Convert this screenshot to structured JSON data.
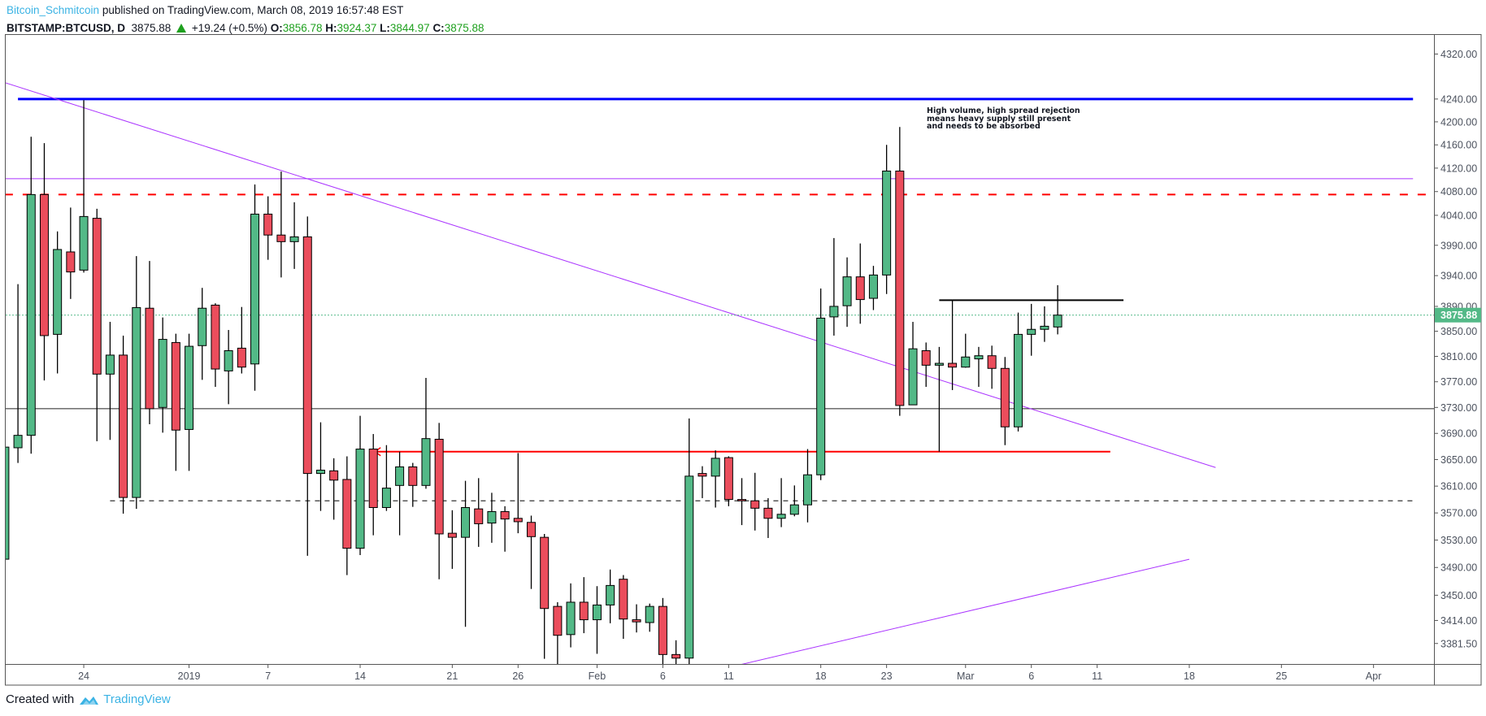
{
  "header": {
    "author": "Bitcoin_Schmitcoin",
    "published": "published on TradingView.com, March 08, 2019 16:57:48 EST",
    "symbol": "BITSTAMP:BTCUSD, D",
    "last": "3875.88",
    "change": "+19.24 (+0.5%)",
    "o_label": "O:",
    "o": "3856.78",
    "h_label": "H:",
    "h": "3924.37",
    "l_label": "L:",
    "l": "3844.97",
    "c_label": "C:",
    "c": "3875.88",
    "change_icon": "triangle-up-icon"
  },
  "annotation": {
    "lines": [
      "High volume, high spread rejection",
      "means heavy supply still present",
      "and needs to be absorbed"
    ]
  },
  "footer": {
    "created_with": "Created with",
    "brand": "TradingView",
    "logo_icon": "tradingview-cloud-icon"
  },
  "colors": {
    "up": "#53b987",
    "down": "#eb4d5c",
    "blue_line": "#0000ff",
    "purple": "#aa33ff",
    "red_line": "#ff0000",
    "price_label": "#53b987"
  },
  "chart_data": {
    "type": "candlestick",
    "symbol": "BITSTAMP:BTCUSD",
    "interval": "D",
    "y_scale": "log",
    "ylim": [
      3353,
      4330
    ],
    "grid": false,
    "start_date": "2018-12-18",
    "columns": [
      "open",
      "high",
      "low",
      "close"
    ],
    "candles": [
      [
        3502,
        3675,
        3500,
        3669
      ],
      [
        3668,
        3926,
        3645,
        3687
      ],
      [
        3687,
        4174,
        3659,
        4075
      ],
      [
        4075,
        4163,
        3772,
        3843
      ],
      [
        3845,
        4013,
        3783,
        3983
      ],
      [
        3979,
        4053,
        3902,
        3946
      ],
      [
        3949,
        4238,
        3945,
        4038
      ],
      [
        4035,
        4051,
        3678,
        3782
      ],
      [
        3782,
        3865,
        3680,
        3812
      ],
      [
        3812,
        3843,
        3569,
        3593
      ],
      [
        3593,
        3972,
        3576,
        3888
      ],
      [
        3887,
        3964,
        3704,
        3728
      ],
      [
        3730,
        3872,
        3691,
        3837
      ],
      [
        3832,
        3846,
        3633,
        3695
      ],
      [
        3696,
        3846,
        3633,
        3826
      ],
      [
        3827,
        3920,
        3773,
        3887
      ],
      [
        3892,
        3895,
        3762,
        3790
      ],
      [
        3787,
        3852,
        3735,
        3819
      ],
      [
        3823,
        3889,
        3783,
        3793
      ],
      [
        3798,
        4092,
        3756,
        4042
      ],
      [
        4042,
        4072,
        3966,
        4007
      ],
      [
        4007,
        4114,
        3937,
        3996
      ],
      [
        3996,
        4062,
        3951,
        4004
      ],
      [
        4004,
        4038,
        3507,
        3629
      ],
      [
        3629,
        3707,
        3573,
        3634
      ],
      [
        3633,
        3652,
        3560,
        3619
      ],
      [
        3620,
        3655,
        3479,
        3518
      ],
      [
        3518,
        3717,
        3508,
        3666
      ],
      [
        3666,
        3689,
        3537,
        3578
      ],
      [
        3578,
        3672,
        3573,
        3607
      ],
      [
        3611,
        3662,
        3537,
        3639
      ],
      [
        3639,
        3645,
        3579,
        3611
      ],
      [
        3611,
        3776,
        3606,
        3682
      ],
      [
        3681,
        3706,
        3473,
        3539
      ],
      [
        3540,
        3574,
        3488,
        3534
      ],
      [
        3534,
        3618,
        3405,
        3578
      ],
      [
        3576,
        3622,
        3520,
        3554
      ],
      [
        3555,
        3600,
        3526,
        3572
      ],
      [
        3572,
        3580,
        3513,
        3561
      ],
      [
        3562,
        3660,
        3540,
        3557
      ],
      [
        3556,
        3566,
        3459,
        3535
      ],
      [
        3534,
        3539,
        3360,
        3431
      ],
      [
        3434,
        3440,
        3350,
        3393
      ],
      [
        3394,
        3467,
        3376,
        3440
      ],
      [
        3440,
        3476,
        3396,
        3415
      ],
      [
        3415,
        3463,
        3367,
        3436
      ],
      [
        3436,
        3487,
        3410,
        3464
      ],
      [
        3473,
        3479,
        3388,
        3416
      ],
      [
        3415,
        3437,
        3397,
        3412
      ],
      [
        3411,
        3438,
        3398,
        3434
      ],
      [
        3434,
        3446,
        3350,
        3366
      ],
      [
        3366,
        3386,
        3350,
        3361
      ],
      [
        3361,
        3713,
        3350,
        3625
      ],
      [
        3629,
        3640,
        3592,
        3625
      ],
      [
        3625,
        3664,
        3578,
        3652
      ],
      [
        3653,
        3655,
        3580,
        3590
      ],
      [
        3590,
        3622,
        3552,
        3588
      ],
      [
        3588,
        3630,
        3544,
        3577
      ],
      [
        3577,
        3592,
        3533,
        3562
      ],
      [
        3562,
        3622,
        3549,
        3568
      ],
      [
        3568,
        3611,
        3565,
        3582
      ],
      [
        3582,
        3666,
        3556,
        3627
      ],
      [
        3627,
        3919,
        3619,
        3871
      ],
      [
        3873,
        4002,
        3843,
        3890
      ],
      [
        3891,
        3970,
        3857,
        3938
      ],
      [
        3938,
        3993,
        3862,
        3901
      ],
      [
        3903,
        3956,
        3884,
        3941
      ],
      [
        3941,
        4160,
        3910,
        4115
      ],
      [
        4115,
        4191,
        3717,
        3733
      ],
      [
        3734,
        3865,
        3734,
        3822
      ],
      [
        3819,
        3832,
        3762,
        3796
      ],
      [
        3796,
        3825,
        3662,
        3799
      ],
      [
        3799,
        3900,
        3757,
        3793
      ],
      [
        3793,
        3846,
        3792,
        3809
      ],
      [
        3806,
        3825,
        3762,
        3811
      ],
      [
        3811,
        3827,
        3759,
        3791
      ],
      [
        3791,
        3809,
        3672,
        3700
      ],
      [
        3700,
        3880,
        3693,
        3845
      ],
      [
        3845,
        3894,
        3811,
        3853
      ],
      [
        3853,
        3890,
        3833,
        3858
      ],
      [
        3856.78,
        3924.37,
        3844.97,
        3875.88
      ]
    ],
    "y_ticks": [
      "4320.00",
      "4240.00",
      "4200.00",
      "4160.00",
      "4120.00",
      "4080.00",
      "4040.00",
      "3990.00",
      "3940.00",
      "3890.00",
      "3850.00",
      "3810.00",
      "3770.00",
      "3730.00",
      "3690.00",
      "3650.00",
      "3610.00",
      "3570.00",
      "3530.00",
      "3490.00",
      "3450.00",
      "3414.00",
      "3381.50"
    ],
    "x_ticks": [
      {
        "label": "24",
        "date": "2018-12-24"
      },
      {
        "label": "2019",
        "date": "2019-01-01"
      },
      {
        "label": "7",
        "date": "2019-01-07"
      },
      {
        "label": "14",
        "date": "2019-01-14"
      },
      {
        "label": "21",
        "date": "2019-01-21"
      },
      {
        "label": "26",
        "date": "2019-01-26"
      },
      {
        "label": "Feb",
        "date": "2019-02-01"
      },
      {
        "label": "6",
        "date": "2019-02-06"
      },
      {
        "label": "11",
        "date": "2019-02-11"
      },
      {
        "label": "18",
        "date": "2019-02-18"
      },
      {
        "label": "23",
        "date": "2019-02-23"
      },
      {
        "label": "Mar",
        "date": "2019-03-01"
      },
      {
        "label": "6",
        "date": "2019-03-06"
      },
      {
        "label": "11",
        "date": "2019-03-11"
      },
      {
        "label": "18",
        "date": "2019-03-18"
      },
      {
        "label": "25",
        "date": "2019-03-25"
      },
      {
        "label": "Apr",
        "date": "2019-04-01"
      }
    ],
    "last_price_label": "3875.88",
    "last_price": 3875.88,
    "drawings": [
      {
        "kind": "hline",
        "price": 4240,
        "from": "2018-12-19",
        "to": "2019-04-04",
        "color": "#0000ff",
        "style": "solid",
        "weight": 3
      },
      {
        "kind": "hline",
        "price": 4102,
        "from": "2018-12-18",
        "to": "2019-04-04",
        "color": "#aa33ff",
        "style": "solid",
        "weight": 1
      },
      {
        "kind": "hline",
        "price": 4075,
        "from": "2018-12-18",
        "to": "2019-04-06",
        "color": "#ff0000",
        "style": "dashed",
        "weight": 2
      },
      {
        "kind": "hline",
        "price": 3728,
        "from": "2018-12-18",
        "to": "2019-04-06",
        "color": "#222222",
        "style": "solid",
        "weight": 1
      },
      {
        "kind": "hline",
        "price": 3588,
        "from": "2018-12-26",
        "to": "2019-04-04",
        "color": "#555555",
        "style": "dashed",
        "weight": 1.5
      },
      {
        "kind": "hline",
        "price": 3662,
        "from": "2019-01-15",
        "to": "2019-03-12",
        "color": "#ff0000",
        "style": "solid",
        "weight": 2
      },
      {
        "kind": "hline",
        "price": 3900,
        "from": "2019-02-27",
        "to": "2019-03-13",
        "color": "#000000",
        "style": "solid",
        "weight": 2
      },
      {
        "kind": "trend",
        "from": "2018-12-18",
        "p1": 4269,
        "to": "2019-03-20",
        "p2": 3638,
        "color": "#aa33ff",
        "weight": 1
      },
      {
        "kind": "trend",
        "from": "2019-02-11",
        "p1": 3348,
        "to": "2019-03-18",
        "p2": 3502,
        "color": "#aa33ff",
        "weight": 1
      }
    ]
  }
}
